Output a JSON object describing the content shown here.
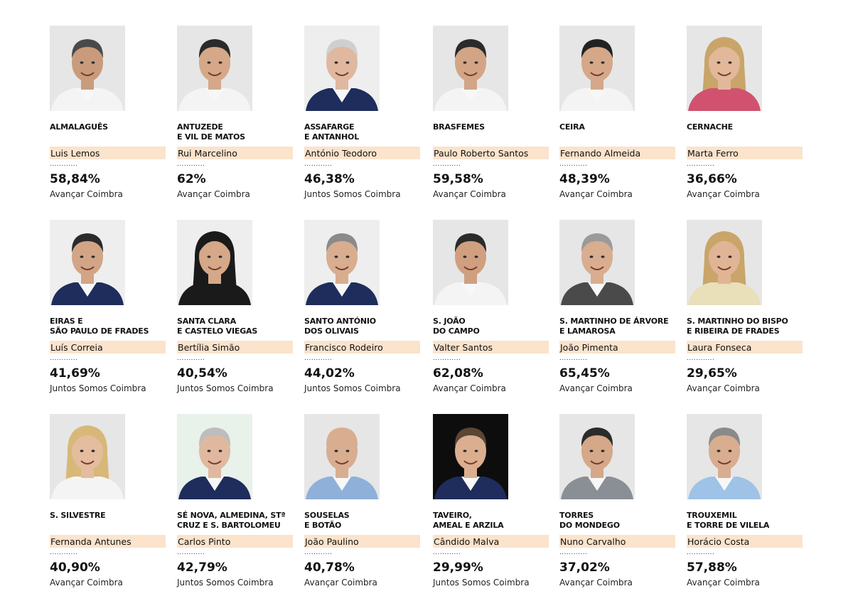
{
  "candidates": [
    {
      "locality": [
        "ALMALAGUÊS"
      ],
      "name": "Luis Lemos",
      "percentage": "58,84%",
      "party": "Avançar Coimbra",
      "dots": "............",
      "photo_bg": "#e6e6e6",
      "suit": "#f4f4f4",
      "hair": "#4a4a4a",
      "skin": "#c99b7c"
    },
    {
      "locality": [
        "ANTUZEDE",
        "E VIL DE MATOS"
      ],
      "name": "Rui Marcelino",
      "percentage": "62%",
      "party": "Avançar Coimbra",
      "dots": "............",
      "photo_bg": "#e6e6e6",
      "suit": "#f4f4f4",
      "hair": "#2b2b2b",
      "skin": "#d4a888"
    },
    {
      "locality": [
        "ASSAFARGE",
        "E ANTANHOL"
      ],
      "name": "António Teodoro",
      "percentage": "46,38%",
      "party": "Juntos Somos Coimbra",
      "dots": "............",
      "photo_bg": "#eeeeee",
      "suit": "#1e2d5c",
      "hair": "#cfcfcf",
      "skin": "#e0b8a0"
    },
    {
      "locality": [
        "BRASFEMES"
      ],
      "name": "Paulo Roberto Santos",
      "percentage": "59,58%",
      "party": "Avançar Coimbra",
      "dots": "............",
      "photo_bg": "#e6e6e6",
      "suit": "#f4f4f4",
      "hair": "#2b2b2b",
      "skin": "#d2a586"
    },
    {
      "locality": [
        "CEIRA"
      ],
      "name": "Fernando Almeida",
      "percentage": "48,39%",
      "party": "Avançar Coimbra",
      "dots": "............",
      "photo_bg": "#e6e6e6",
      "suit": "#f4f4f4",
      "hair": "#222222",
      "skin": "#d4a888"
    },
    {
      "locality": [
        "CERNACHE"
      ],
      "name": "Marta Ferro",
      "percentage": "36,66%",
      "party": "Avançar Coimbra",
      "dots": "............",
      "photo_bg": "#e6e6e6",
      "suit": "#d0526f",
      "hair": "#c9a56a",
      "skin": "#e2b89a"
    },
    {
      "locality": [
        "EIRAS E",
        "SÃO PAULO DE FRADES"
      ],
      "name": "Luís Correia",
      "percentage": "41,69%",
      "party": "Juntos Somos Coimbra",
      "dots": "............",
      "photo_bg": "#eeeeee",
      "suit": "#1e2d5c",
      "hair": "#2b2b2b",
      "skin": "#d2a586"
    },
    {
      "locality": [
        "SANTA CLARA",
        "E CASTELO VIEGAS"
      ],
      "name": "Bertília Simão",
      "percentage": "40,54%",
      "party": "Juntos Somos Coimbra",
      "dots": "............",
      "photo_bg": "#eeeeee",
      "suit": "#1a1a1a",
      "hair": "#1a1a1a",
      "skin": "#d4a888"
    },
    {
      "locality": [
        "SANTO ANTÓNIO",
        "DOS OLIVAIS"
      ],
      "name": "Francisco Rodeiro",
      "percentage": "44,02%",
      "party": "Juntos Somos Coimbra",
      "dots": "............",
      "photo_bg": "#eeeeee",
      "suit": "#1e2d5c",
      "hair": "#8a8a8a",
      "skin": "#d8ad90"
    },
    {
      "locality": [
        "S. JOÃO",
        "DO CAMPO"
      ],
      "name": "Valter Santos",
      "percentage": "62,08%",
      "party": "Avançar Coimbra",
      "dots": "............",
      "photo_bg": "#e6e6e6",
      "suit": "#f4f4f4",
      "hair": "#2b2b2b",
      "skin": "#cf9f80"
    },
    {
      "locality": [
        "S. MARTINHO DE ÁRVORE",
        "E LAMAROSA"
      ],
      "name": "João Pimenta",
      "percentage": "65,45%",
      "party": "Avançar Coimbra",
      "dots": "............",
      "photo_bg": "#e6e6e6",
      "suit": "#4a4a4a",
      "hair": "#9a9a9a",
      "skin": "#d8ad90"
    },
    {
      "locality": [
        "S. MARTINHO DO BISPO",
        "E RIBEIRA DE FRADES"
      ],
      "name": "Laura Fonseca",
      "percentage": "29,65%",
      "party": "Avançar Coimbra",
      "dots": "............",
      "photo_bg": "#e6e6e6",
      "suit": "#e9dfb8",
      "hair": "#c9a56a",
      "skin": "#e0b596"
    },
    {
      "locality": [
        "S. SILVESTRE"
      ],
      "name": "Fernanda Antunes",
      "percentage": "40,90%",
      "party": "Avançar Coimbra",
      "dots": "............",
      "photo_bg": "#e6e6e6",
      "suit": "#f4f4f4",
      "hair": "#d8b878",
      "skin": "#e4bc9e"
    },
    {
      "locality": [
        "SÉ NOVA, ALMEDINA, Stª",
        "CRUZ E S. BARTOLOMEU"
      ],
      "name": "Carlos Pinto",
      "percentage": "42,79%",
      "party": "Juntos Somos Coimbra",
      "dots": "............",
      "photo_bg": "#e8f1ea",
      "suit": "#1e2d5c",
      "hair": "#bdbdbd",
      "skin": "#e0b8a0"
    },
    {
      "locality": [
        "SOUSELAS",
        "E BOTÃO"
      ],
      "name": "João Paulino",
      "percentage": "40,78%",
      "party": "Avançar Coimbra",
      "dots": "............",
      "photo_bg": "#e6e6e6",
      "suit": "#8fb0d8",
      "hair": "#d8ad90",
      "skin": "#d8ad90"
    },
    {
      "locality": [
        "TAVEIRO,",
        "AMEAL E ARZILA"
      ],
      "name": "Cândido Malva",
      "percentage": "29,99%",
      "party": "Juntos Somos Coimbra",
      "dots": "............",
      "photo_bg": "#0d0d0d",
      "suit": "#1e2d5c",
      "hair": "#5a4632",
      "skin": "#dcae90"
    },
    {
      "locality": [
        "TORRES",
        "DO MONDEGO"
      ],
      "name": "Nuno Carvalho",
      "percentage": "37,02%",
      "party": "Avançar Coimbra",
      "dots": "............",
      "photo_bg": "#e6e6e6",
      "suit": "#8a8f96",
      "hair": "#2b2b2b",
      "skin": "#d4a888"
    },
    {
      "locality": [
        "TROUXEMIL",
        "E TORRE DE VILELA"
      ],
      "name": "Horácio Costa",
      "percentage": "57,88%",
      "party": "Avançar Coimbra",
      "dots": "............",
      "photo_bg": "#e6e6e6",
      "suit": "#9ec3e6",
      "hair": "#8a8a8a",
      "skin": "#d8ad90"
    }
  ]
}
